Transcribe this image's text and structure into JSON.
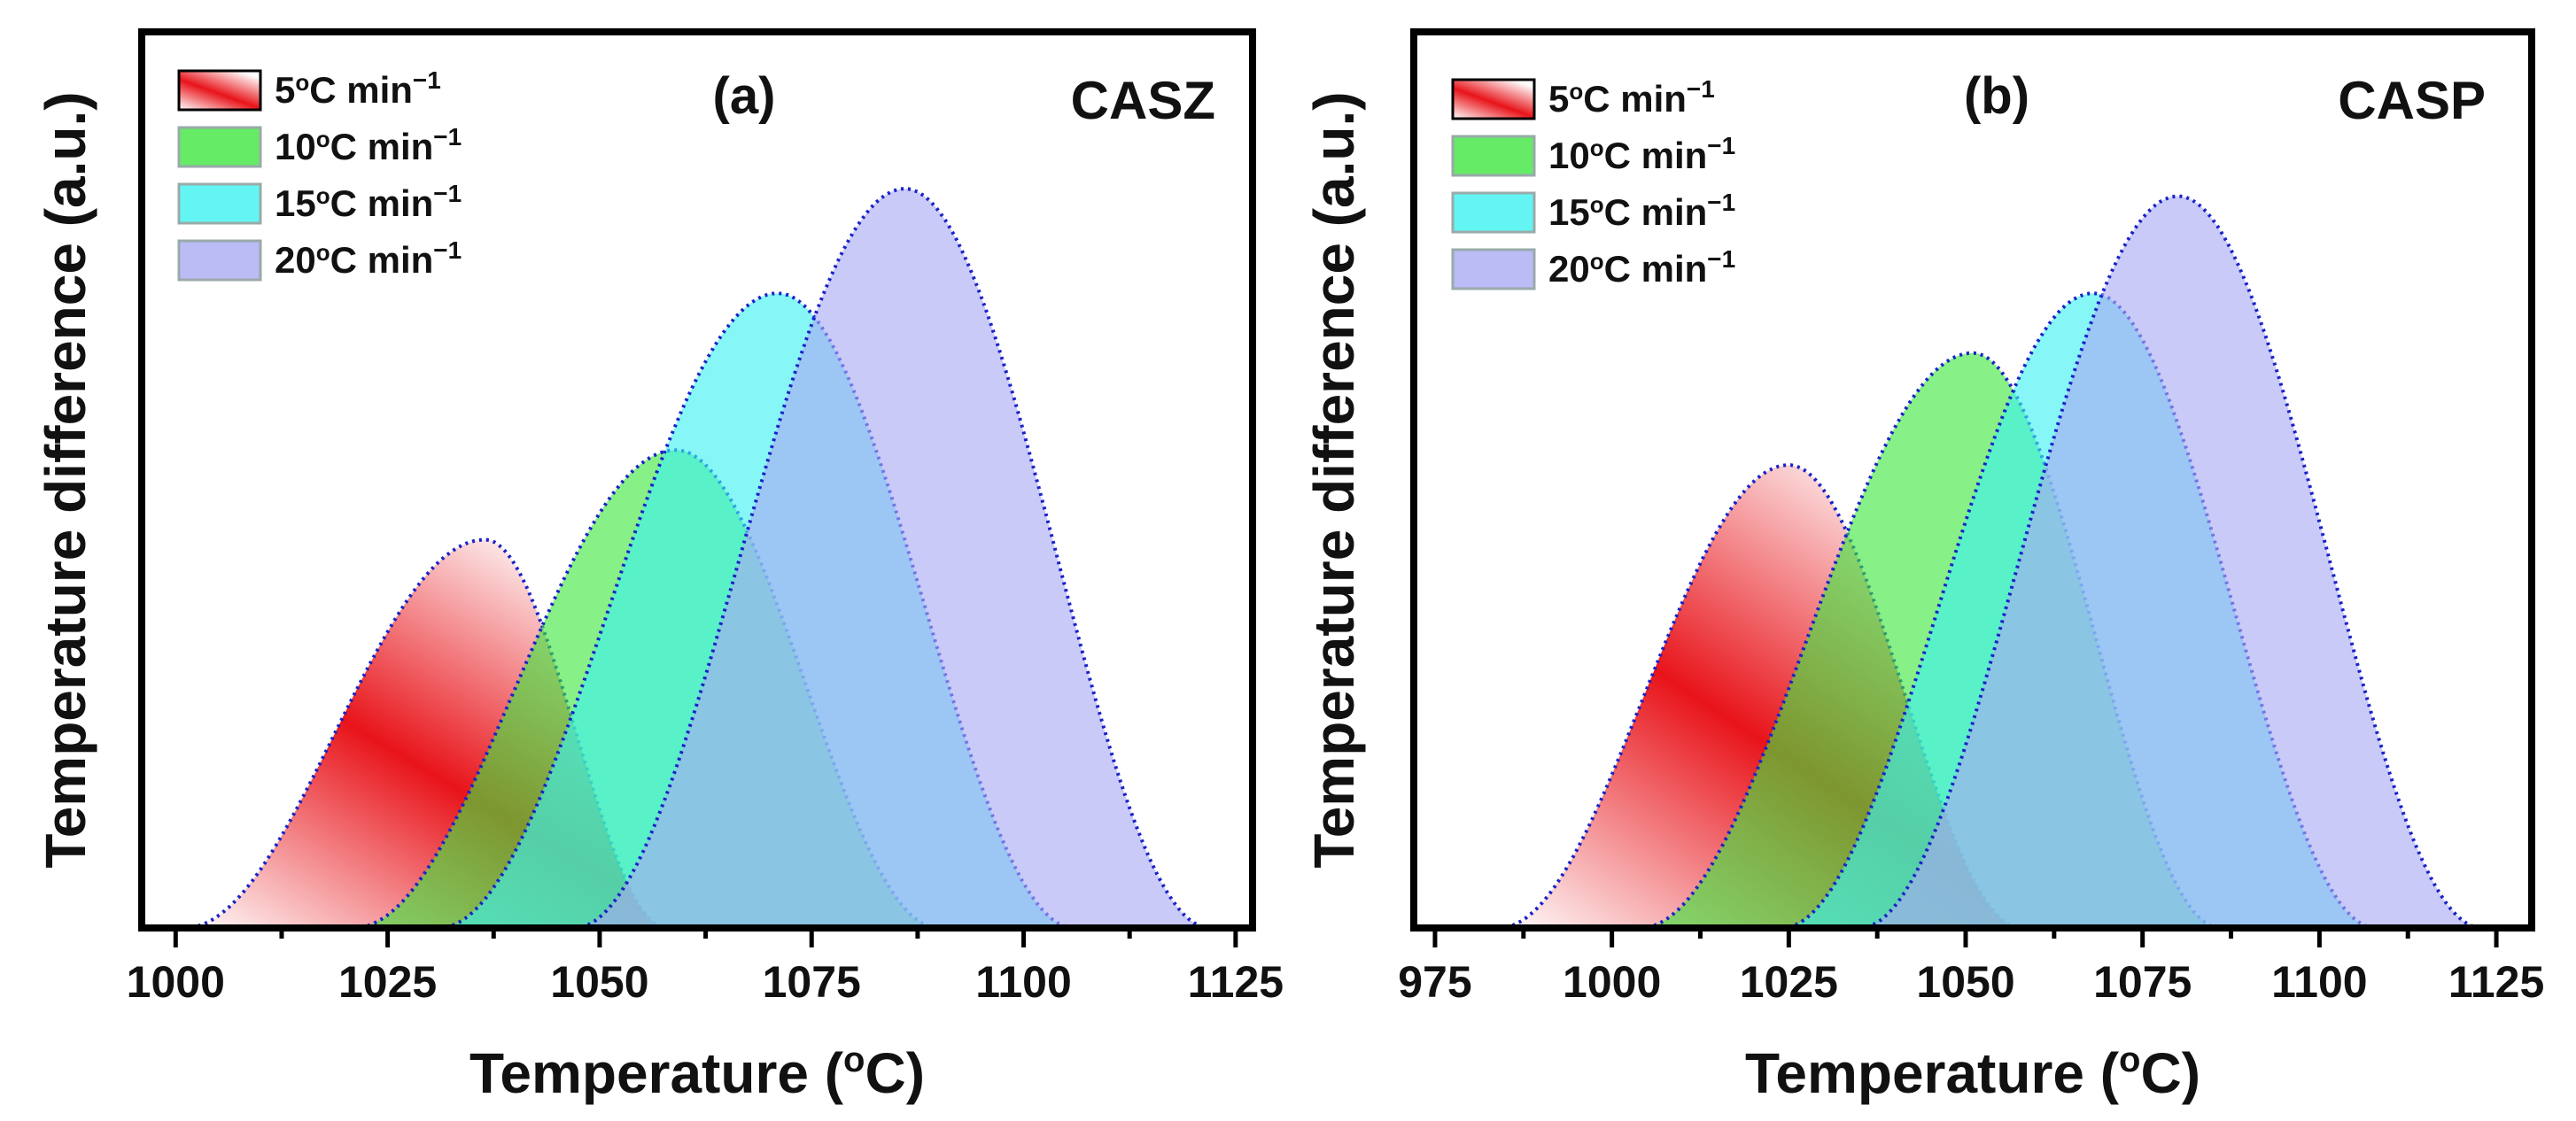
{
  "chart_data": [
    {
      "type": "area",
      "panel_label": "(a)",
      "sample": "CASZ",
      "xlabel_main": "Temperature (",
      "xlabel_sup": "o",
      "xlabel_end": "C)",
      "ylabel": "Temperature difference (a.u.)",
      "xlim": [
        996,
        1127
      ],
      "ylim": [
        0,
        1.2
      ],
      "xticks": [
        1000,
        1025,
        1050,
        1075,
        1100,
        1125
      ],
      "yticks_visible": false,
      "legend_position": "top-left",
      "series": [
        {
          "name": "5°C min−1",
          "rate": "5",
          "peak_x": 1036.5,
          "peak_y": 0.52,
          "start_x": 1001,
          "end_x": 1058,
          "skew": 1.0,
          "fill": "red-gradient",
          "color": "#e8141a"
        },
        {
          "name": "10°C min−1",
          "rate": "10",
          "peak_x": 1059,
          "peak_y": 0.64,
          "start_x": 1021,
          "end_x": 1090,
          "skew": 0.9,
          "fill": "solid",
          "color": "#3ee63e"
        },
        {
          "name": "15°C min−1",
          "rate": "15",
          "peak_x": 1071,
          "peak_y": 0.85,
          "start_x": 1031,
          "end_x": 1106,
          "skew": 0.9,
          "fill": "solid",
          "color": "#3cf2f0"
        },
        {
          "name": "20°C min−1",
          "rate": "20",
          "peak_x": 1086,
          "peak_y": 0.99,
          "start_x": 1047,
          "end_x": 1122,
          "skew": 1.0,
          "fill": "solid",
          "color": "#aaaaf4"
        }
      ]
    },
    {
      "type": "area",
      "panel_label": "(b)",
      "sample": "CASP",
      "xlabel_main": "Temperature (",
      "xlabel_sup": "o",
      "xlabel_end": "C)",
      "ylabel": "Temperature difference (a.u.)",
      "xlim": [
        972,
        1130
      ],
      "ylim": [
        0,
        1.2
      ],
      "xticks": [
        975,
        1000,
        1025,
        1050,
        1075,
        1100,
        1125
      ],
      "yticks_visible": false,
      "legend_position": "top-left",
      "series": [
        {
          "name": "5°C min−1",
          "rate": "5",
          "peak_x": 1025,
          "peak_y": 0.62,
          "start_x": 984,
          "end_x": 1058,
          "skew": 0.9,
          "fill": "red-gradient",
          "color": "#e8141a"
        },
        {
          "name": "10°C min−1",
          "rate": "10",
          "peak_x": 1051,
          "peak_y": 0.77,
          "start_x": 1004,
          "end_x": 1086,
          "skew": 1.0,
          "fill": "solid",
          "color": "#3ee63e"
        },
        {
          "name": "15°C min−1",
          "rate": "15",
          "peak_x": 1068,
          "peak_y": 0.85,
          "start_x": 1024,
          "end_x": 1108,
          "skew": 1.0,
          "fill": "solid",
          "color": "#3cf2f0"
        },
        {
          "name": "20°C min−1",
          "rate": "20",
          "peak_x": 1080,
          "peak_y": 0.98,
          "start_x": 1035,
          "end_x": 1123,
          "skew": 1.0,
          "fill": "solid",
          "color": "#aaaaf4"
        }
      ]
    }
  ]
}
